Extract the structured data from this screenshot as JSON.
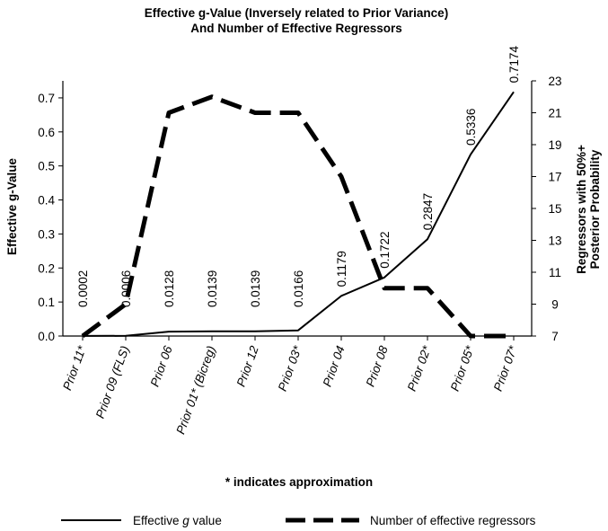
{
  "chart_data": {
    "type": "line",
    "title_line1": "Effective g-Value (Inversely related to Prior Variance)",
    "title_line2": "And Number of Effective Regressors",
    "ylabel_left": "Effective g-Value",
    "ylabel_right_line1": "Regressors with 50%+",
    "ylabel_right_line2": "Posterior Probability",
    "footnote": "* indicates approximation",
    "categories": [
      "Prior 11*",
      "Prior 09 (FLS)",
      "Prior 06",
      "Prior 01* (Bicreg)",
      "Prior 12",
      "Prior 03*",
      "Prior 04",
      "Prior 08",
      "Prior 02*",
      "Prior 05*",
      "Prior 07*"
    ],
    "ylim_left": [
      0,
      0.75
    ],
    "yticks_left": [
      "0.0",
      "0.1",
      "0.2",
      "0.3",
      "0.4",
      "0.5",
      "0.6",
      "0.7"
    ],
    "ylim_right": [
      7,
      23
    ],
    "yticks_right": [
      "7",
      "9",
      "11",
      "13",
      "15",
      "17",
      "19",
      "21",
      "23"
    ],
    "series": [
      {
        "name": "Effective g value",
        "axis": "left",
        "style": "solid",
        "values": [
          0.0002,
          0.0006,
          0.0128,
          0.0139,
          0.0139,
          0.0166,
          0.1179,
          0.1722,
          0.2847,
          0.5336,
          0.7174
        ],
        "labels": [
          "0.0002",
          "0.0006",
          "0.0128",
          "0.0139",
          "0.0139",
          "0.0166",
          "0.1179",
          "0.1722",
          "0.2847",
          "0.5336",
          "0.7174"
        ]
      },
      {
        "name": "Number of effective regressors",
        "axis": "right",
        "style": "dashed",
        "values": [
          7,
          9,
          21,
          22,
          21,
          21,
          17,
          10,
          10,
          7,
          7
        ]
      }
    ],
    "legend": [
      {
        "label_prefix": "Effective ",
        "label_italic": "g",
        "label_suffix": " value",
        "style": "solid"
      },
      {
        "label": "Number of effective regressors",
        "style": "dashed"
      }
    ],
    "legend_position": "bottom",
    "grid": false
  }
}
